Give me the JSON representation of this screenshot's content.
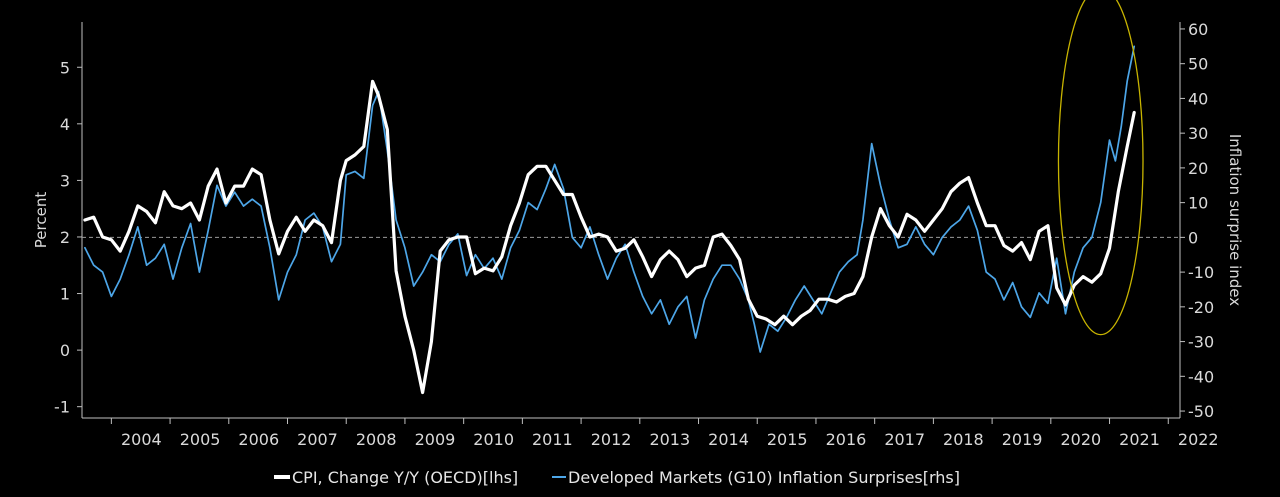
{
  "chart_data": {
    "type": "line",
    "title": "",
    "xlabel": "",
    "ylabel_left": "Percent",
    "ylabel_right": "Inflation surprise index",
    "xlim": [
      2003.5,
      2022.2
    ],
    "ylim_left": [
      -1.2,
      5.8
    ],
    "ylim_right": [
      -52,
      62
    ],
    "x_ticks": [
      2004,
      2005,
      2006,
      2007,
      2008,
      2009,
      2010,
      2011,
      2012,
      2013,
      2014,
      2015,
      2016,
      2017,
      2018,
      2019,
      2020,
      2021,
      2022
    ],
    "y_ticks_left": [
      -1,
      0,
      1,
      2,
      3,
      4,
      5
    ],
    "y_ticks_right": [
      -50,
      -40,
      -30,
      -20,
      -10,
      0,
      10,
      20,
      30,
      40,
      50,
      60
    ],
    "reference_line": {
      "axis": "right",
      "value": 0,
      "style": "dashed"
    },
    "grid": false,
    "legend_position": "bottom",
    "highlight": {
      "shape": "ellipse",
      "color": "#c8b400",
      "cx": 2020.85,
      "cy_right": 22,
      "rx_years": 0.72,
      "ry_right": 50
    },
    "series": [
      {
        "name": "CPI, Change Y/Y (OECD)[lhs]",
        "axis": "left",
        "color": "#ffffff",
        "points": [
          [
            2003.55,
            2.3
          ],
          [
            2003.7,
            2.35
          ],
          [
            2003.85,
            2.0
          ],
          [
            2004.0,
            1.95
          ],
          [
            2004.15,
            1.75
          ],
          [
            2004.3,
            2.1
          ],
          [
            2004.45,
            2.55
          ],
          [
            2004.6,
            2.45
          ],
          [
            2004.75,
            2.25
          ],
          [
            2004.9,
            2.8
          ],
          [
            2005.05,
            2.55
          ],
          [
            2005.2,
            2.5
          ],
          [
            2005.35,
            2.6
          ],
          [
            2005.5,
            2.3
          ],
          [
            2005.65,
            2.9
          ],
          [
            2005.8,
            3.2
          ],
          [
            2005.95,
            2.6
          ],
          [
            2006.1,
            2.9
          ],
          [
            2006.25,
            2.9
          ],
          [
            2006.4,
            3.2
          ],
          [
            2006.55,
            3.1
          ],
          [
            2006.7,
            2.3
          ],
          [
            2006.85,
            1.7
          ],
          [
            2007.0,
            2.1
          ],
          [
            2007.15,
            2.35
          ],
          [
            2007.3,
            2.1
          ],
          [
            2007.45,
            2.3
          ],
          [
            2007.6,
            2.2
          ],
          [
            2007.75,
            1.9
          ],
          [
            2007.9,
            3.0
          ],
          [
            2008.0,
            3.35
          ],
          [
            2008.15,
            3.45
          ],
          [
            2008.3,
            3.6
          ],
          [
            2008.45,
            4.75
          ],
          [
            2008.55,
            4.5
          ],
          [
            2008.7,
            3.9
          ],
          [
            2008.85,
            1.4
          ],
          [
            2009.0,
            0.6
          ],
          [
            2009.15,
            0.0
          ],
          [
            2009.3,
            -0.75
          ],
          [
            2009.45,
            0.15
          ],
          [
            2009.6,
            1.75
          ],
          [
            2009.75,
            1.95
          ],
          [
            2009.9,
            2.0
          ],
          [
            2010.05,
            2.0
          ],
          [
            2010.2,
            1.35
          ],
          [
            2010.35,
            1.45
          ],
          [
            2010.5,
            1.4
          ],
          [
            2010.65,
            1.65
          ],
          [
            2010.8,
            2.2
          ],
          [
            2010.95,
            2.6
          ],
          [
            2011.1,
            3.1
          ],
          [
            2011.25,
            3.25
          ],
          [
            2011.4,
            3.25
          ],
          [
            2011.55,
            3.0
          ],
          [
            2011.7,
            2.75
          ],
          [
            2011.85,
            2.75
          ],
          [
            2012.0,
            2.35
          ],
          [
            2012.15,
            2.0
          ],
          [
            2012.3,
            2.05
          ],
          [
            2012.45,
            2.0
          ],
          [
            2012.6,
            1.75
          ],
          [
            2012.75,
            1.8
          ],
          [
            2012.9,
            1.95
          ],
          [
            2013.05,
            1.65
          ],
          [
            2013.2,
            1.3
          ],
          [
            2013.35,
            1.6
          ],
          [
            2013.5,
            1.75
          ],
          [
            2013.65,
            1.6
          ],
          [
            2013.8,
            1.3
          ],
          [
            2013.95,
            1.45
          ],
          [
            2014.1,
            1.5
          ],
          [
            2014.25,
            2.0
          ],
          [
            2014.4,
            2.05
          ],
          [
            2014.55,
            1.85
          ],
          [
            2014.7,
            1.6
          ],
          [
            2014.85,
            0.9
          ],
          [
            2015.0,
            0.6
          ],
          [
            2015.15,
            0.55
          ],
          [
            2015.3,
            0.45
          ],
          [
            2015.45,
            0.6
          ],
          [
            2015.6,
            0.45
          ],
          [
            2015.75,
            0.6
          ],
          [
            2015.9,
            0.7
          ],
          [
            2016.05,
            0.9
          ],
          [
            2016.2,
            0.9
          ],
          [
            2016.35,
            0.85
          ],
          [
            2016.5,
            0.95
          ],
          [
            2016.65,
            1.0
          ],
          [
            2016.8,
            1.3
          ],
          [
            2016.95,
            2.0
          ],
          [
            2017.1,
            2.5
          ],
          [
            2017.25,
            2.2
          ],
          [
            2017.4,
            2.0
          ],
          [
            2017.55,
            2.4
          ],
          [
            2017.7,
            2.3
          ],
          [
            2017.85,
            2.1
          ],
          [
            2018.0,
            2.3
          ],
          [
            2018.15,
            2.5
          ],
          [
            2018.3,
            2.8
          ],
          [
            2018.45,
            2.95
          ],
          [
            2018.6,
            3.05
          ],
          [
            2018.75,
            2.6
          ],
          [
            2018.9,
            2.2
          ],
          [
            2019.05,
            2.2
          ],
          [
            2019.2,
            1.85
          ],
          [
            2019.35,
            1.75
          ],
          [
            2019.5,
            1.9
          ],
          [
            2019.65,
            1.6
          ],
          [
            2019.8,
            2.1
          ],
          [
            2019.95,
            2.2
          ],
          [
            2020.1,
            1.1
          ],
          [
            2020.25,
            0.8
          ],
          [
            2020.4,
            1.15
          ],
          [
            2020.55,
            1.3
          ],
          [
            2020.7,
            1.2
          ],
          [
            2020.85,
            1.35
          ],
          [
            2021.0,
            1.8
          ],
          [
            2021.15,
            2.8
          ],
          [
            2021.3,
            3.6
          ],
          [
            2021.42,
            4.2
          ]
        ]
      },
      {
        "name": "Developed Markets (G10) Inflation Surprises[rhs]",
        "axis": "right",
        "color": "#4da6e8",
        "points": [
          [
            2003.55,
            -3
          ],
          [
            2003.7,
            -8
          ],
          [
            2003.85,
            -10
          ],
          [
            2004.0,
            -17
          ],
          [
            2004.15,
            -12
          ],
          [
            2004.3,
            -5
          ],
          [
            2004.45,
            3
          ],
          [
            2004.6,
            -8
          ],
          [
            2004.75,
            -6
          ],
          [
            2004.9,
            -2
          ],
          [
            2005.05,
            -12
          ],
          [
            2005.2,
            -3
          ],
          [
            2005.35,
            4
          ],
          [
            2005.5,
            -10
          ],
          [
            2005.65,
            2
          ],
          [
            2005.8,
            15
          ],
          [
            2005.95,
            9
          ],
          [
            2006.1,
            13
          ],
          [
            2006.25,
            9
          ],
          [
            2006.4,
            11
          ],
          [
            2006.55,
            9
          ],
          [
            2006.7,
            -3
          ],
          [
            2006.85,
            -18
          ],
          [
            2007.0,
            -10
          ],
          [
            2007.15,
            -5
          ],
          [
            2007.3,
            5
          ],
          [
            2007.45,
            7
          ],
          [
            2007.6,
            3
          ],
          [
            2007.75,
            -7
          ],
          [
            2007.9,
            -2
          ],
          [
            2008.0,
            18
          ],
          [
            2008.15,
            19
          ],
          [
            2008.3,
            17
          ],
          [
            2008.45,
            38
          ],
          [
            2008.55,
            42
          ],
          [
            2008.7,
            25
          ],
          [
            2008.85,
            5
          ],
          [
            2009.0,
            -3
          ],
          [
            2009.15,
            -14
          ],
          [
            2009.3,
            -10
          ],
          [
            2009.45,
            -5
          ],
          [
            2009.6,
            -7
          ],
          [
            2009.75,
            -2
          ],
          [
            2009.9,
            1
          ],
          [
            2010.05,
            -11
          ],
          [
            2010.2,
            -5
          ],
          [
            2010.35,
            -9
          ],
          [
            2010.5,
            -6
          ],
          [
            2010.65,
            -12
          ],
          [
            2010.8,
            -3
          ],
          [
            2010.95,
            2
          ],
          [
            2011.1,
            10
          ],
          [
            2011.25,
            8
          ],
          [
            2011.4,
            14
          ],
          [
            2011.55,
            21
          ],
          [
            2011.7,
            14
          ],
          [
            2011.85,
            0
          ],
          [
            2012.0,
            -3
          ],
          [
            2012.15,
            3
          ],
          [
            2012.3,
            -5
          ],
          [
            2012.45,
            -12
          ],
          [
            2012.6,
            -6
          ],
          [
            2012.75,
            -2
          ],
          [
            2012.9,
            -10
          ],
          [
            2013.05,
            -17
          ],
          [
            2013.2,
            -22
          ],
          [
            2013.35,
            -18
          ],
          [
            2013.5,
            -25
          ],
          [
            2013.65,
            -20
          ],
          [
            2013.8,
            -17
          ],
          [
            2013.95,
            -29
          ],
          [
            2014.1,
            -18
          ],
          [
            2014.25,
            -12
          ],
          [
            2014.4,
            -8
          ],
          [
            2014.55,
            -8
          ],
          [
            2014.7,
            -12
          ],
          [
            2014.85,
            -18
          ],
          [
            2014.95,
            -25
          ],
          [
            2015.05,
            -33
          ],
          [
            2015.2,
            -25
          ],
          [
            2015.35,
            -27
          ],
          [
            2015.5,
            -23
          ],
          [
            2015.65,
            -18
          ],
          [
            2015.8,
            -14
          ],
          [
            2015.95,
            -18
          ],
          [
            2016.1,
            -22
          ],
          [
            2016.25,
            -16
          ],
          [
            2016.4,
            -10
          ],
          [
            2016.55,
            -7
          ],
          [
            2016.7,
            -5
          ],
          [
            2016.8,
            5
          ],
          [
            2016.95,
            27
          ],
          [
            2017.1,
            15
          ],
          [
            2017.25,
            5
          ],
          [
            2017.4,
            -3
          ],
          [
            2017.55,
            -2
          ],
          [
            2017.7,
            3
          ],
          [
            2017.85,
            -2
          ],
          [
            2018.0,
            -5
          ],
          [
            2018.15,
            0
          ],
          [
            2018.3,
            3
          ],
          [
            2018.45,
            5
          ],
          [
            2018.6,
            9
          ],
          [
            2018.75,
            2
          ],
          [
            2018.9,
            -10
          ],
          [
            2019.05,
            -12
          ],
          [
            2019.2,
            -18
          ],
          [
            2019.35,
            -13
          ],
          [
            2019.5,
            -20
          ],
          [
            2019.65,
            -23
          ],
          [
            2019.8,
            -16
          ],
          [
            2019.95,
            -19
          ],
          [
            2020.1,
            -6
          ],
          [
            2020.25,
            -22
          ],
          [
            2020.4,
            -10
          ],
          [
            2020.55,
            -3
          ],
          [
            2020.7,
            0
          ],
          [
            2020.85,
            10
          ],
          [
            2021.0,
            28
          ],
          [
            2021.1,
            22
          ],
          [
            2021.2,
            32
          ],
          [
            2021.3,
            45
          ],
          [
            2021.42,
            55
          ]
        ]
      }
    ]
  }
}
